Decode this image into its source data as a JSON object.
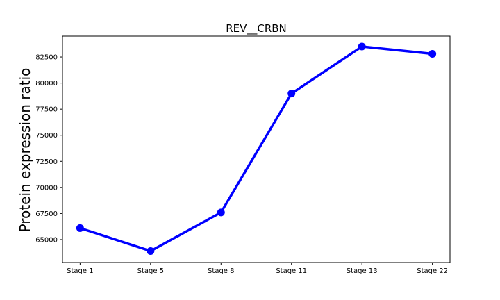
{
  "chart_data": {
    "type": "line",
    "title": "REV__CRBN",
    "xlabel": "",
    "ylabel": "Protein expression ratio",
    "categories": [
      "Stage 1",
      "Stage 5",
      "Stage 8",
      "Stage 11",
      "Stage 13",
      "Stage 22"
    ],
    "series": [
      {
        "values": [
          66100,
          63900,
          67600,
          79000,
          83500,
          82800
        ],
        "color": "#0000ff",
        "marker": "circle"
      }
    ],
    "ylim": [
      62800,
      84500
    ],
    "yticks": [
      65000,
      67500,
      70000,
      72500,
      75000,
      77500,
      80000,
      82500
    ],
    "ytick_labels": [
      "65000",
      "67500",
      "70000",
      "72500",
      "75000",
      "77500",
      "80000",
      "82500"
    ],
    "grid": false,
    "legend": "none"
  }
}
